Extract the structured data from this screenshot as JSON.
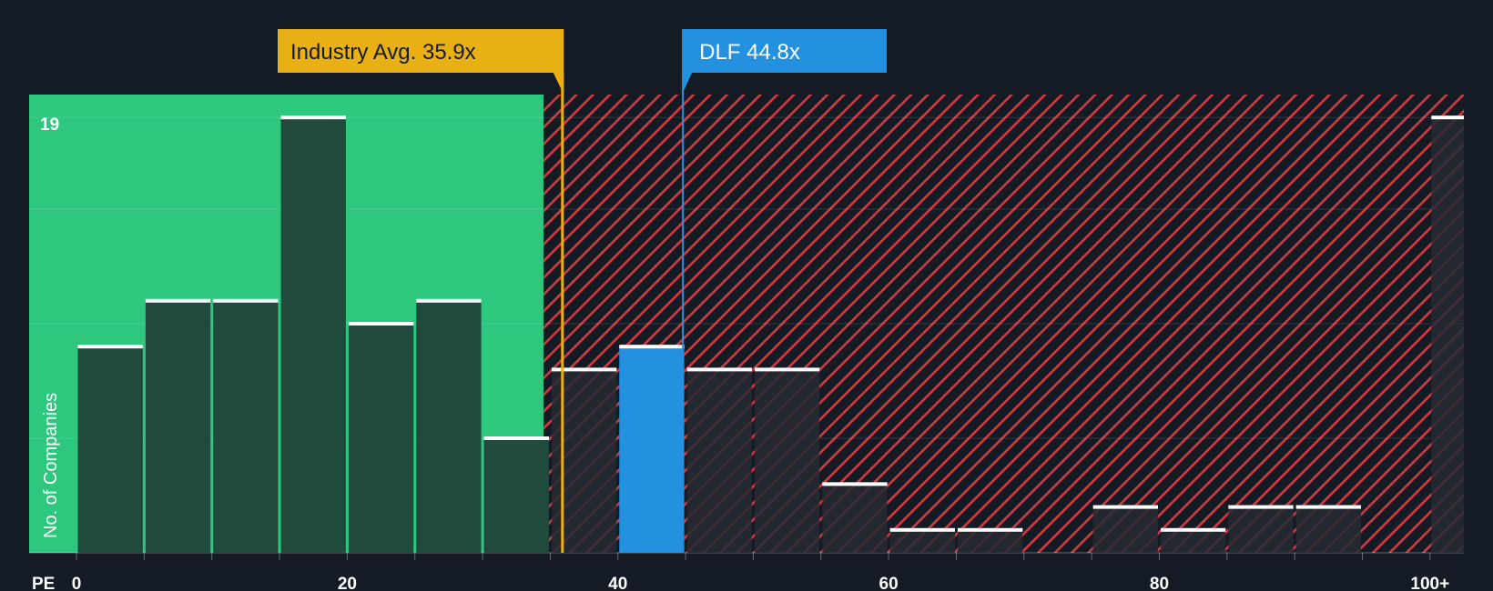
{
  "chart_data": {
    "type": "bar",
    "title": "",
    "xlabel": "PE",
    "ylabel": "No. of Companies",
    "x_tick_labels": [
      {
        "value": 0,
        "label": "0"
      },
      {
        "value": 20,
        "label": "20"
      },
      {
        "value": 40,
        "label": "40"
      },
      {
        "value": 60,
        "label": "60"
      },
      {
        "value": 80,
        "label": "80"
      },
      {
        "value": 100,
        "label": "100+"
      }
    ],
    "x_range": [
      -3.5,
      102.5
    ],
    "ylim": [
      0,
      20
    ],
    "y_max_label": "19",
    "bin_width": 5,
    "bins": [
      {
        "start": 0,
        "count": 9
      },
      {
        "start": 5,
        "count": 11
      },
      {
        "start": 10,
        "count": 11
      },
      {
        "start": 15,
        "count": 19
      },
      {
        "start": 20,
        "count": 10
      },
      {
        "start": 25,
        "count": 11
      },
      {
        "start": 30,
        "count": 5
      },
      {
        "start": 35,
        "count": 8
      },
      {
        "start": 40,
        "count": 9
      },
      {
        "start": 45,
        "count": 8
      },
      {
        "start": 50,
        "count": 8
      },
      {
        "start": 55,
        "count": 3
      },
      {
        "start": 60,
        "count": 1
      },
      {
        "start": 65,
        "count": 1
      },
      {
        "start": 70,
        "count": 0
      },
      {
        "start": 75,
        "count": 2
      },
      {
        "start": 80,
        "count": 1
      },
      {
        "start": 85,
        "count": 2
      },
      {
        "start": 90,
        "count": 2
      },
      {
        "start": 95,
        "count": 0
      },
      {
        "start": 100,
        "count": 19
      }
    ],
    "fair_range_end": 34.5,
    "industry_avg": {
      "value": 35.9,
      "label": "Industry Avg. 35.9x"
    },
    "company": {
      "value": 44.8,
      "label": "DLF 44.8x",
      "highlight_bin_start": 40
    },
    "colors": {
      "background": "#151b24",
      "fair_zone": "#2ec77e",
      "fair_bar": "#1f4a3c",
      "over_stripe": "#d33a3f",
      "over_bar": "#262a33",
      "company_bar": "#2391e0",
      "industry_line": "#e9b016",
      "company_line": "#2391e0",
      "cap": "#ffffff",
      "axis_text": "#ffffff"
    }
  }
}
